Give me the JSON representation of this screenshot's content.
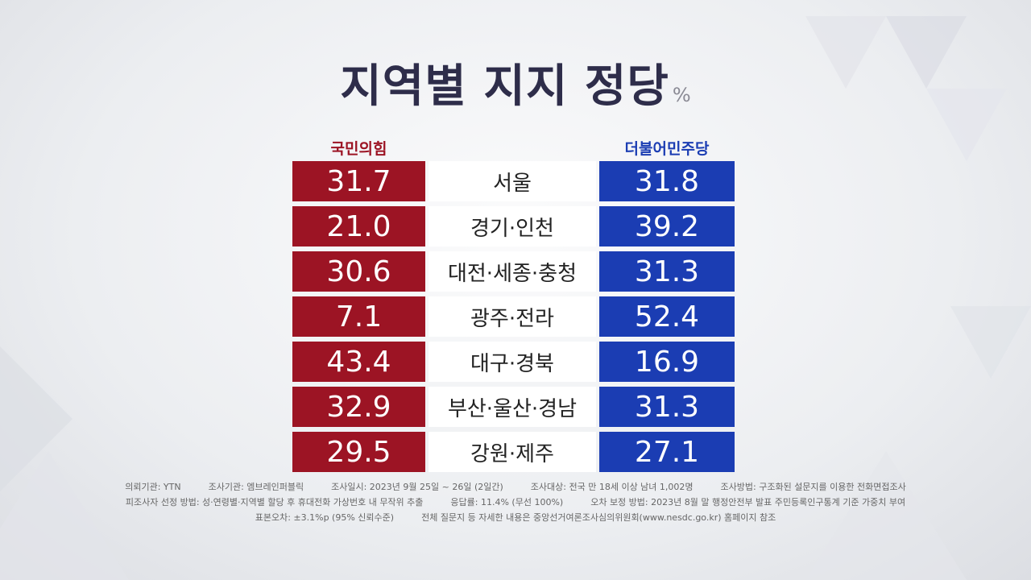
{
  "header": {
    "title": "지역별 지지 정당",
    "unit": "%"
  },
  "table": {
    "columns": [
      "국민의힘",
      "더불어민주당"
    ],
    "rows": [
      [
        "서울",
        "31.7",
        "31.8"
      ],
      [
        "경기·인천",
        "21.0",
        "39.2"
      ],
      [
        "대전·세종·충청",
        "30.6",
        "31.3"
      ],
      [
        "광주·전라",
        "7.1",
        "52.4"
      ],
      [
        "대구·경북",
        "43.4",
        "16.9"
      ],
      [
        "부산·울산·경남",
        "32.9",
        "31.3"
      ],
      [
        "강원·제주",
        "29.5",
        "27.1"
      ]
    ]
  },
  "footnotes": [
    [
      "의뢰기관: YTN",
      "조사기관: 엠브레인퍼블릭",
      "조사일시: 2023년 9월 25일 ~ 26일 (2일간)",
      "조사대상: 전국 만 18세 이상 남녀 1,002명",
      "조사방법: 구조화된 설문지를 이용한 전화면접조사"
    ],
    [
      "피조사자 선정 방법: 성·연령별·지역별 할당 후 휴대전화 가상번호 내 무작위 추출",
      "응답률: 11.4% (무선 100%)",
      "오차 보정 방법: 2023년 8월 말 행정안전부 발표 주민등록인구통계 기준 가중치 부여"
    ],
    [
      "표본오차: ±3.1%p (95% 신뢰수준)",
      "전체 질문지 등 자세한 내용은 중앙선거여론조사심의위원회(www.nesdc.go.kr) 홈페이지 참조"
    ]
  ]
}
